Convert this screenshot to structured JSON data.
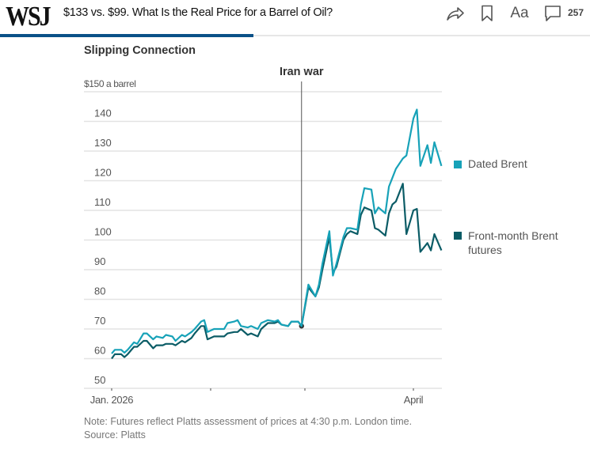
{
  "header": {
    "logo": "WSJ",
    "headline": "$133 vs. $99. What Is the Real Price for a Barrel of Oil?",
    "icons": [
      "share-icon",
      "bookmark-icon",
      "text-size-icon",
      "comment-icon"
    ],
    "font_size_label": "Aa",
    "comment_count": "257",
    "read_progress": 0.43,
    "accent_color": "#0a5188"
  },
  "footer": {
    "note": "Note: Futures reflect Platts assessment of prices at 4:30 p.m. London time.",
    "source": "Source: Platts"
  },
  "chart_data": {
    "type": "line",
    "title": "Slipping Connection",
    "xlabel": "",
    "ylabel": "$150 a barrel",
    "ylim": [
      50,
      150
    ],
    "yticks": [
      50,
      60,
      70,
      80,
      90,
      100,
      110,
      120,
      130,
      140,
      150
    ],
    "ytick_labels": [
      "50",
      "60",
      "70",
      "80",
      "90",
      "100",
      "110",
      "120",
      "130",
      "140",
      "$150 a barrel"
    ],
    "x_unit": "days since Jan. 1, 2026",
    "xlim": [
      0,
      98
    ],
    "xticks": [
      0,
      31,
      59,
      90
    ],
    "xtick_labels": [
      "Jan. 2026",
      "",
      "",
      "April"
    ],
    "grid": true,
    "legend": "right",
    "annotation": {
      "label": "Iran war",
      "x": 58
    },
    "x": [
      0,
      1,
      3,
      4,
      5,
      7,
      8,
      10,
      11,
      13,
      14,
      16,
      17,
      19,
      20,
      22,
      23,
      25,
      26,
      28,
      29,
      30,
      32,
      33,
      35,
      36,
      38,
      39,
      40,
      42,
      43,
      45,
      46,
      48,
      50,
      51,
      52,
      54,
      55,
      57,
      58,
      60,
      62,
      63,
      64,
      66,
      67,
      68,
      70,
      71,
      72,
      74,
      75,
      76,
      78,
      79,
      80,
      82,
      83,
      84,
      85,
      87,
      88,
      90,
      91,
      92,
      94,
      95,
      96,
      98
    ],
    "series": [
      {
        "name": "Dated Brent",
        "color": "#17a2b8",
        "values": [
          61.7,
          63,
          63,
          62,
          63,
          65.5,
          65,
          68.5,
          68.5,
          66.5,
          67.5,
          67,
          68,
          67.5,
          66,
          68,
          67.5,
          69,
          70,
          72.5,
          73,
          69,
          70,
          70,
          70,
          72,
          72.5,
          73,
          71,
          70.5,
          71,
          70,
          72,
          73,
          72.5,
          73,
          71.5,
          71,
          72.5,
          72.5,
          71,
          85,
          81,
          85,
          92,
          103,
          88,
          92,
          101,
          104,
          104,
          103.5,
          112,
          117.5,
          117,
          109,
          111,
          109,
          118,
          121,
          124,
          127.5,
          128.5,
          141,
          144,
          125,
          132,
          126,
          133,
          125
        ]
      },
      {
        "name": "Front-month Brent futures",
        "color": "#0b5c66",
        "values": [
          60,
          61.5,
          61.5,
          60.5,
          61.5,
          64,
          64,
          66,
          66,
          63.5,
          64.5,
          64.5,
          65,
          65,
          64.5,
          66,
          65.5,
          67,
          68.5,
          71,
          71,
          66.5,
          67.5,
          67.5,
          67.5,
          68.5,
          69,
          69,
          70,
          68,
          68.5,
          67.5,
          70,
          72,
          72,
          72.5,
          71.5,
          71,
          72.5,
          72.5,
          71,
          84,
          81,
          84,
          90,
          101,
          89,
          91,
          100,
          102,
          103,
          102,
          108.5,
          111,
          110,
          104,
          103.5,
          101.5,
          109,
          112,
          113,
          119,
          102,
          110,
          110.5,
          96,
          99,
          96.5,
          102,
          96.5
        ]
      }
    ]
  }
}
